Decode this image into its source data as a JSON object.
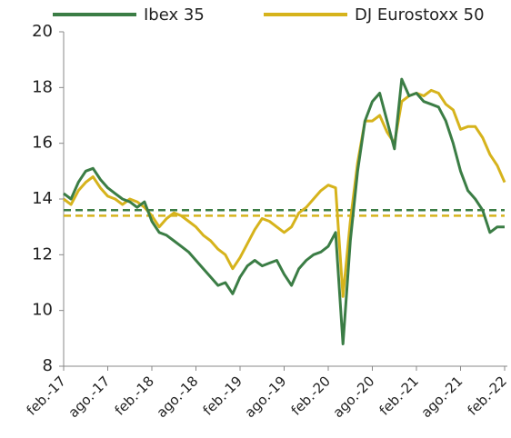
{
  "chart_data": {
    "type": "line",
    "categories": [
      "feb.-17",
      null,
      null,
      null,
      null,
      null,
      "ago.-17",
      null,
      null,
      null,
      null,
      null,
      "feb.-18",
      null,
      null,
      null,
      null,
      null,
      "ago.-18",
      null,
      null,
      null,
      null,
      null,
      "feb.-19",
      null,
      null,
      null,
      null,
      null,
      "ago.-19",
      null,
      null,
      null,
      null,
      null,
      "feb.-20",
      null,
      null,
      null,
      null,
      null,
      "ago.-20",
      null,
      null,
      null,
      null,
      null,
      "feb.-21",
      null,
      null,
      null,
      null,
      null,
      "ago.-21",
      null,
      null,
      null,
      null,
      null,
      "feb.-22"
    ],
    "series": [
      {
        "name": "Ibex 35",
        "color": "#3b7d45",
        "average": 13.6,
        "values": [
          14.2,
          14.0,
          14.6,
          15.0,
          15.1,
          14.7,
          14.4,
          14.2,
          14.0,
          13.9,
          13.7,
          13.9,
          13.2,
          12.8,
          12.7,
          12.5,
          12.3,
          12.1,
          11.8,
          11.5,
          11.2,
          10.9,
          11.0,
          10.6,
          11.2,
          11.6,
          11.8,
          11.6,
          11.7,
          11.8,
          11.3,
          10.9,
          11.5,
          11.8,
          12.0,
          12.1,
          12.3,
          12.8,
          8.8,
          12.5,
          15.0,
          16.8,
          17.5,
          17.8,
          16.8,
          15.8,
          18.3,
          17.7,
          17.8,
          17.5,
          17.4,
          17.3,
          16.8,
          16.0,
          15.0,
          14.3,
          14.0,
          13.6,
          12.8,
          13.0,
          13.0
        ]
      },
      {
        "name": "DJ Eurostoxx 50",
        "color": "#d6b31c",
        "average": 13.4,
        "values": [
          14.0,
          13.8,
          14.3,
          14.6,
          14.8,
          14.4,
          14.1,
          14.0,
          13.8,
          14.0,
          13.9,
          13.7,
          13.4,
          13.0,
          13.3,
          13.5,
          13.4,
          13.2,
          13.0,
          12.7,
          12.5,
          12.2,
          12.0,
          11.5,
          11.9,
          12.4,
          12.9,
          13.3,
          13.2,
          13.0,
          12.8,
          13.0,
          13.5,
          13.7,
          14.0,
          14.3,
          14.5,
          14.4,
          10.5,
          13.2,
          15.3,
          16.8,
          16.8,
          17.0,
          16.4,
          16.0,
          17.5,
          17.7,
          17.8,
          17.7,
          17.9,
          17.8,
          17.4,
          17.2,
          16.5,
          16.6,
          16.6,
          16.2,
          15.6,
          15.2,
          14.6
        ]
      }
    ],
    "ylim": [
      8,
      20
    ],
    "yticks": [
      8,
      10,
      12,
      14,
      16,
      18,
      20
    ],
    "legend": "top"
  }
}
